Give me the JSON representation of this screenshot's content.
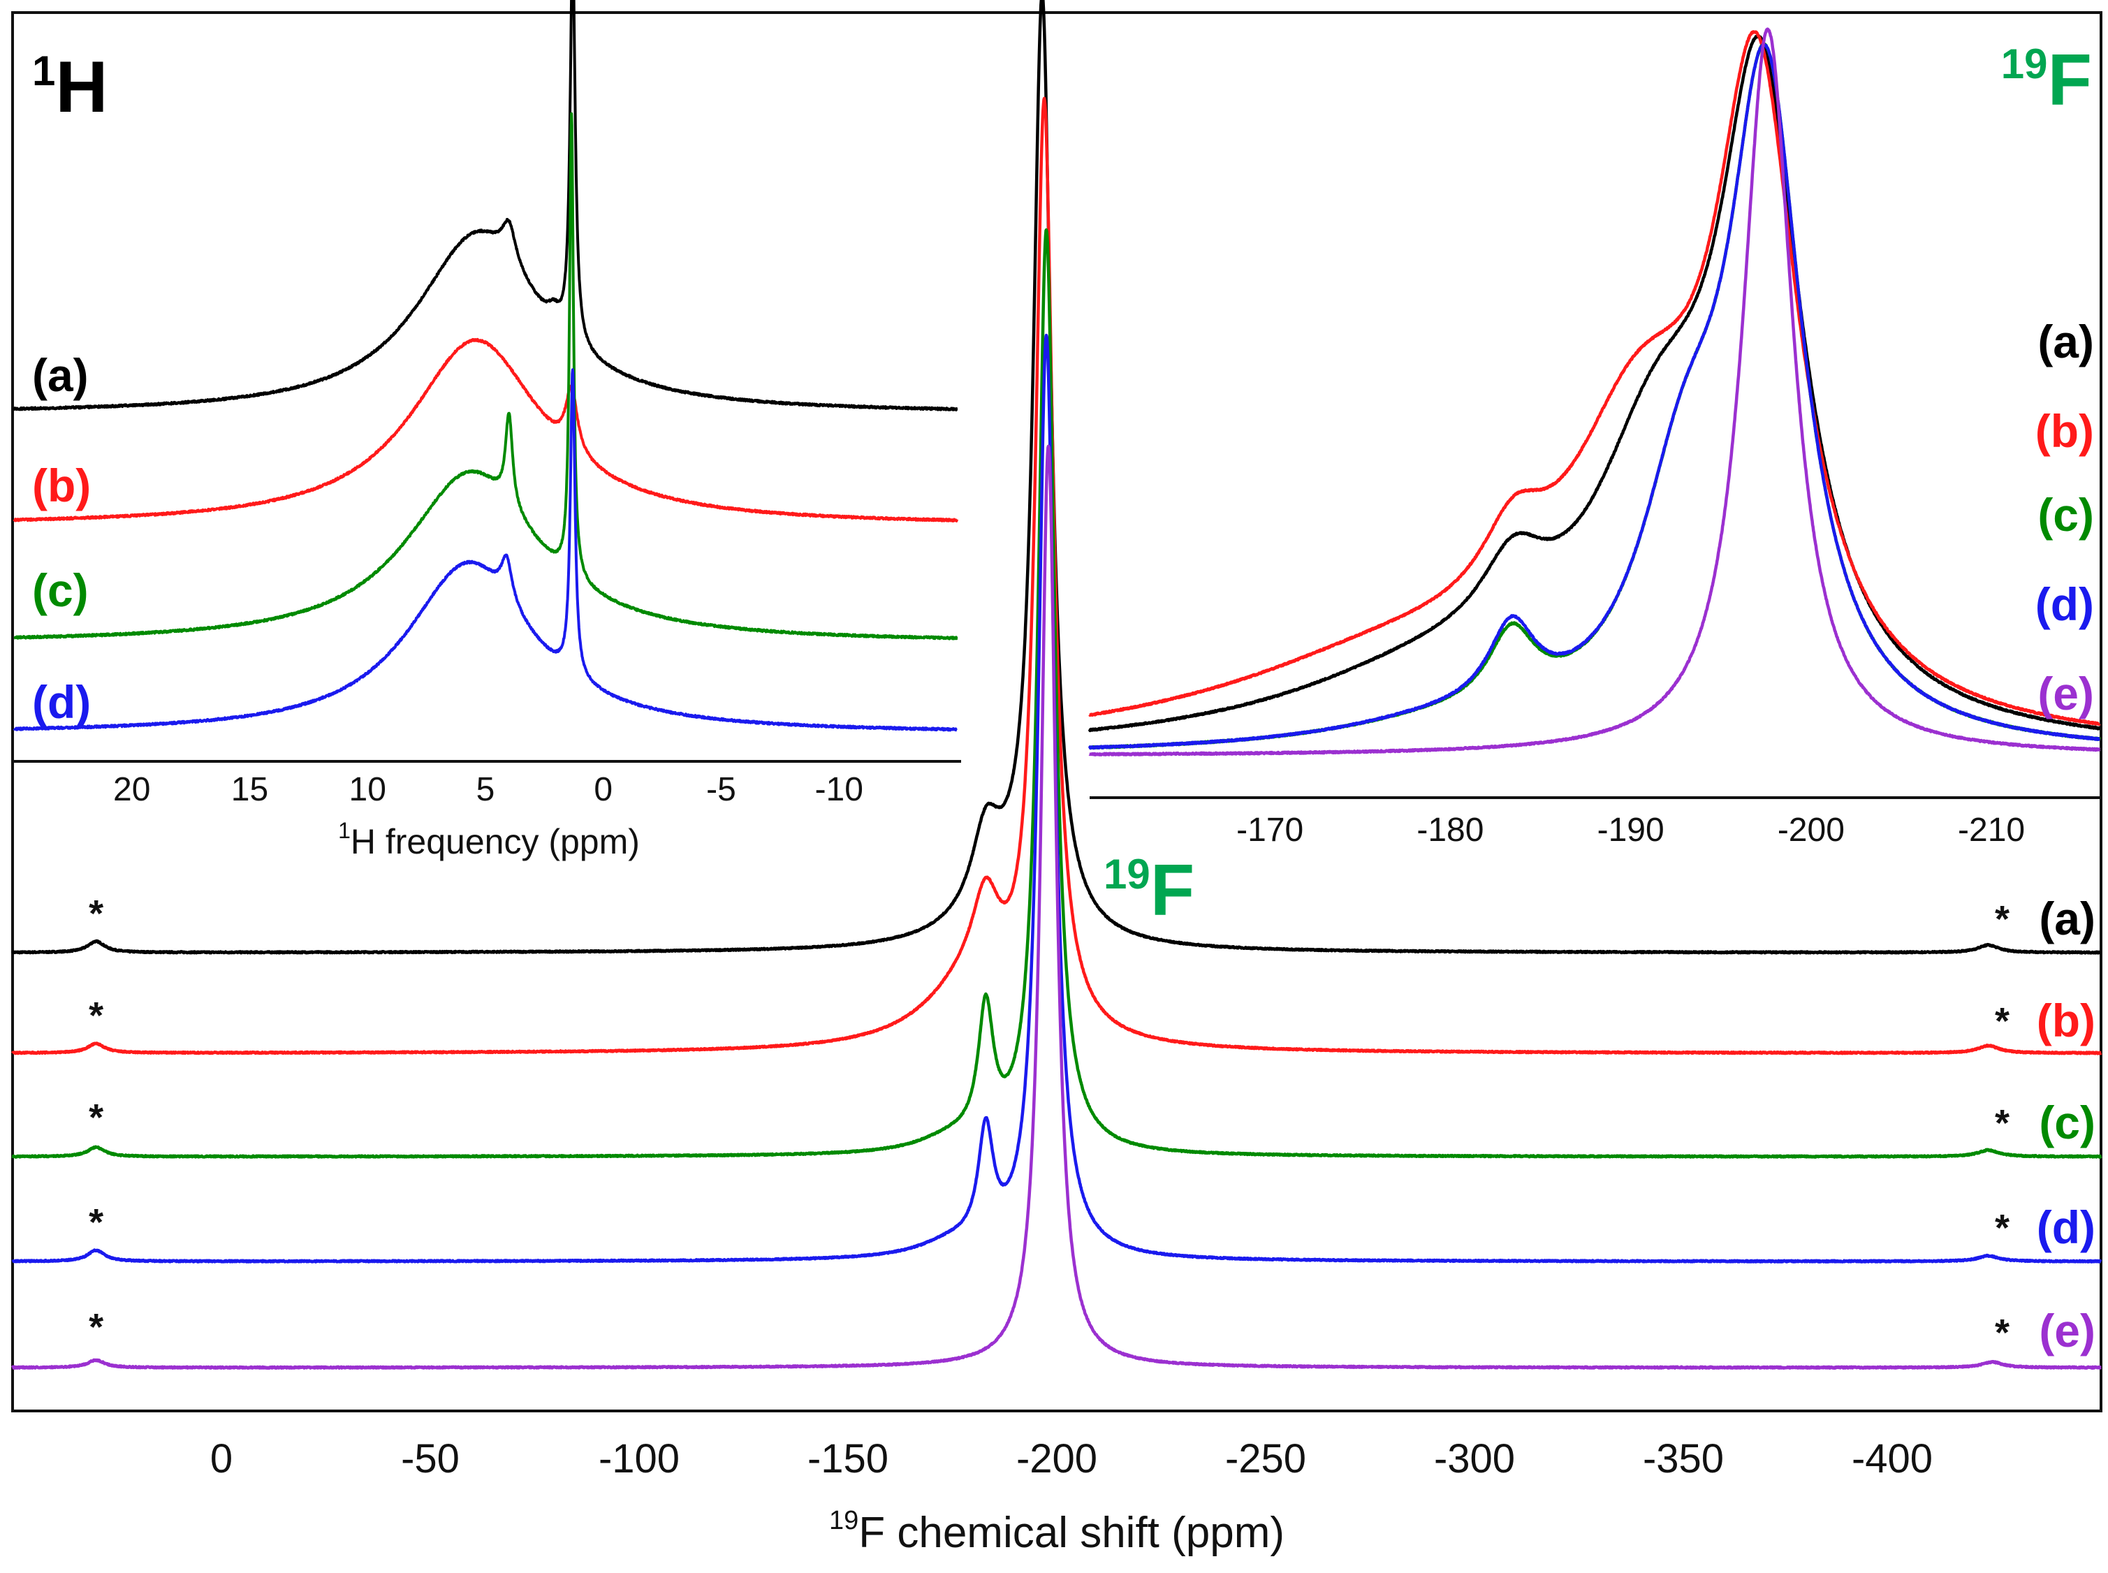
{
  "colors": {
    "a": "#000000",
    "b": "#ff1a1a",
    "c": "#008a00",
    "d": "#1a1aee",
    "e": "#9b30d0",
    "nucleus_green": "#00a651"
  },
  "chart_data": [
    {
      "id": "main",
      "type": "line",
      "title": "",
      "nucleus_label": {
        "sup": "19",
        "text": "F"
      },
      "xlabel": {
        "sup": "19",
        "text": "F chemical shift (ppm)"
      },
      "ylabel": "",
      "xlim": [
        50,
        -450
      ],
      "x_ticks": [
        0,
        -50,
        -100,
        -150,
        -200,
        -250,
        -300,
        -350,
        -400
      ],
      "x_tick_labels": [
        "0",
        "-50",
        "-100",
        "-150",
        "-200",
        "-250",
        "-300",
        "-350",
        "-400"
      ],
      "spinning_sideband_marker": "*",
      "sideband_positions_ppm": [
        30,
        -423
      ],
      "series": [
        {
          "name": "(a)",
          "color_key": "a",
          "components": [
            {
              "center": -196.5,
              "width": 2.6,
              "height": 1.0
            },
            {
              "center": -183,
              "width": 4,
              "height": 0.08
            },
            {
              "center": -188,
              "width": 12,
              "height": 0.05
            },
            {
              "center": 30,
              "width": 2.5,
              "height": 0.012
            },
            {
              "center": -423,
              "width": 3,
              "height": 0.008
            }
          ]
        },
        {
          "name": "(b)",
          "color_key": "b",
          "components": [
            {
              "center": -197,
              "width": 2.6,
              "height": 1.0
            },
            {
              "center": -183,
              "width": 4,
              "height": 0.09
            },
            {
              "center": -180,
              "width": 14,
              "height": 0.07
            },
            {
              "center": 30,
              "width": 2.5,
              "height": 0.01
            },
            {
              "center": -423,
              "width": 3,
              "height": 0.008
            }
          ]
        },
        {
          "name": "(c)",
          "color_key": "c",
          "components": [
            {
              "center": -197.5,
              "width": 2.4,
              "height": 1.0
            },
            {
              "center": -183,
              "width": 2.2,
              "height": 0.14
            },
            {
              "center": -175,
              "width": 10,
              "height": 0.015
            },
            {
              "center": 30,
              "width": 2.5,
              "height": 0.01
            },
            {
              "center": -423,
              "width": 3,
              "height": 0.007
            }
          ]
        },
        {
          "name": "(d)",
          "color_key": "d",
          "components": [
            {
              "center": -197.5,
              "width": 2.4,
              "height": 1.0
            },
            {
              "center": -183,
              "width": 2.2,
              "height": 0.12
            },
            {
              "center": -175,
              "width": 10,
              "height": 0.015
            },
            {
              "center": 30,
              "width": 2.5,
              "height": 0.012
            },
            {
              "center": -423,
              "width": 3,
              "height": 0.006
            }
          ]
        },
        {
          "name": "(e)",
          "color_key": "e",
          "components": [
            {
              "center": -198,
              "width": 2.2,
              "height": 1.0
            },
            {
              "center": 30,
              "width": 2.5,
              "height": 0.008
            },
            {
              "center": -424,
              "width": 3,
              "height": 0.006
            }
          ]
        }
      ]
    },
    {
      "id": "inset_1H",
      "type": "line",
      "title": "",
      "nucleus_label": {
        "sup": "1",
        "text": "H"
      },
      "xlabel": {
        "sup": "1",
        "text": "H frequency (ppm)"
      },
      "xlim": [
        25,
        -15
      ],
      "x_ticks": [
        20,
        15,
        10,
        5,
        0,
        -5,
        -10
      ],
      "x_tick_labels": [
        "20",
        "15",
        "10",
        "5",
        "0",
        "-5",
        "-10"
      ],
      "series": [
        {
          "name": "(a)",
          "color_key": "a",
          "components": [
            {
              "center": 5.3,
              "width": 3.2,
              "height": 0.95
            },
            {
              "center": 4.0,
              "width": 0.35,
              "height": 0.2
            },
            {
              "center": 2.1,
              "width": 0.3,
              "height": 0.07
            },
            {
              "center": 1.3,
              "width": 0.13,
              "height": 2.1
            }
          ]
        },
        {
          "name": "(b)",
          "color_key": "b",
          "components": [
            {
              "center": 5.4,
              "width": 3.4,
              "height": 0.98
            },
            {
              "center": 1.35,
              "width": 0.3,
              "height": 0.33
            }
          ]
        },
        {
          "name": "(c)",
          "color_key": "c",
          "components": [
            {
              "center": 5.6,
              "width": 3.4,
              "height": 0.9
            },
            {
              "center": 4.0,
              "width": 0.18,
              "height": 0.48
            },
            {
              "center": 1.35,
              "width": 0.1,
              "height": 2.45
            }
          ]
        },
        {
          "name": "(d)",
          "color_key": "d",
          "components": [
            {
              "center": 5.7,
              "width": 3.2,
              "height": 0.9
            },
            {
              "center": 4.1,
              "width": 0.28,
              "height": 0.22
            },
            {
              "center": 1.3,
              "width": 0.12,
              "height": 1.62
            }
          ]
        }
      ]
    },
    {
      "id": "inset_19F",
      "type": "line",
      "title": "",
      "nucleus_label": {
        "sup": "19",
        "text": "F"
      },
      "xlabel": "",
      "xlim": [
        -160,
        -216
      ],
      "x_ticks": [
        -170,
        -180,
        -190,
        -200,
        -210
      ],
      "x_tick_labels": [
        "-170",
        "-180",
        "-190",
        "-200",
        "-210"
      ],
      "series": [
        {
          "name": "(a)",
          "color_key": "a",
          "components": [
            {
              "center": -197.2,
              "width": 2.8,
              "height": 0.83
            },
            {
              "center": -191.5,
              "width": 4.5,
              "height": 0.33
            },
            {
              "center": -183.5,
              "width": 2.2,
              "height": 0.1
            },
            {
              "center": -180,
              "width": 11,
              "height": 0.1
            }
          ]
        },
        {
          "name": "(b)",
          "color_key": "b",
          "components": [
            {
              "center": -197,
              "width": 2.8,
              "height": 0.82
            },
            {
              "center": -190.5,
              "width": 5,
              "height": 0.36
            },
            {
              "center": -183.5,
              "width": 2.2,
              "height": 0.1
            },
            {
              "center": -178,
              "width": 13,
              "height": 0.12
            }
          ]
        },
        {
          "name": "(c)",
          "color_key": "c",
          "components": [
            {
              "center": -197.5,
              "width": 2.5,
              "height": 0.87
            },
            {
              "center": -193,
              "width": 3.2,
              "height": 0.3
            },
            {
              "center": -183.4,
              "width": 1.6,
              "height": 0.1
            },
            {
              "center": -180,
              "width": 8,
              "height": 0.03
            }
          ]
        },
        {
          "name": "(d)",
          "color_key": "d",
          "components": [
            {
              "center": -197.5,
              "width": 2.5,
              "height": 0.87
            },
            {
              "center": -193,
              "width": 3.2,
              "height": 0.3
            },
            {
              "center": -183.4,
              "width": 1.6,
              "height": 0.11
            },
            {
              "center": -180,
              "width": 8,
              "height": 0.03
            }
          ]
        },
        {
          "name": "(e)",
          "color_key": "e",
          "components": [
            {
              "center": -197.6,
              "width": 1.7,
              "height": 1.0
            }
          ]
        }
      ]
    }
  ]
}
